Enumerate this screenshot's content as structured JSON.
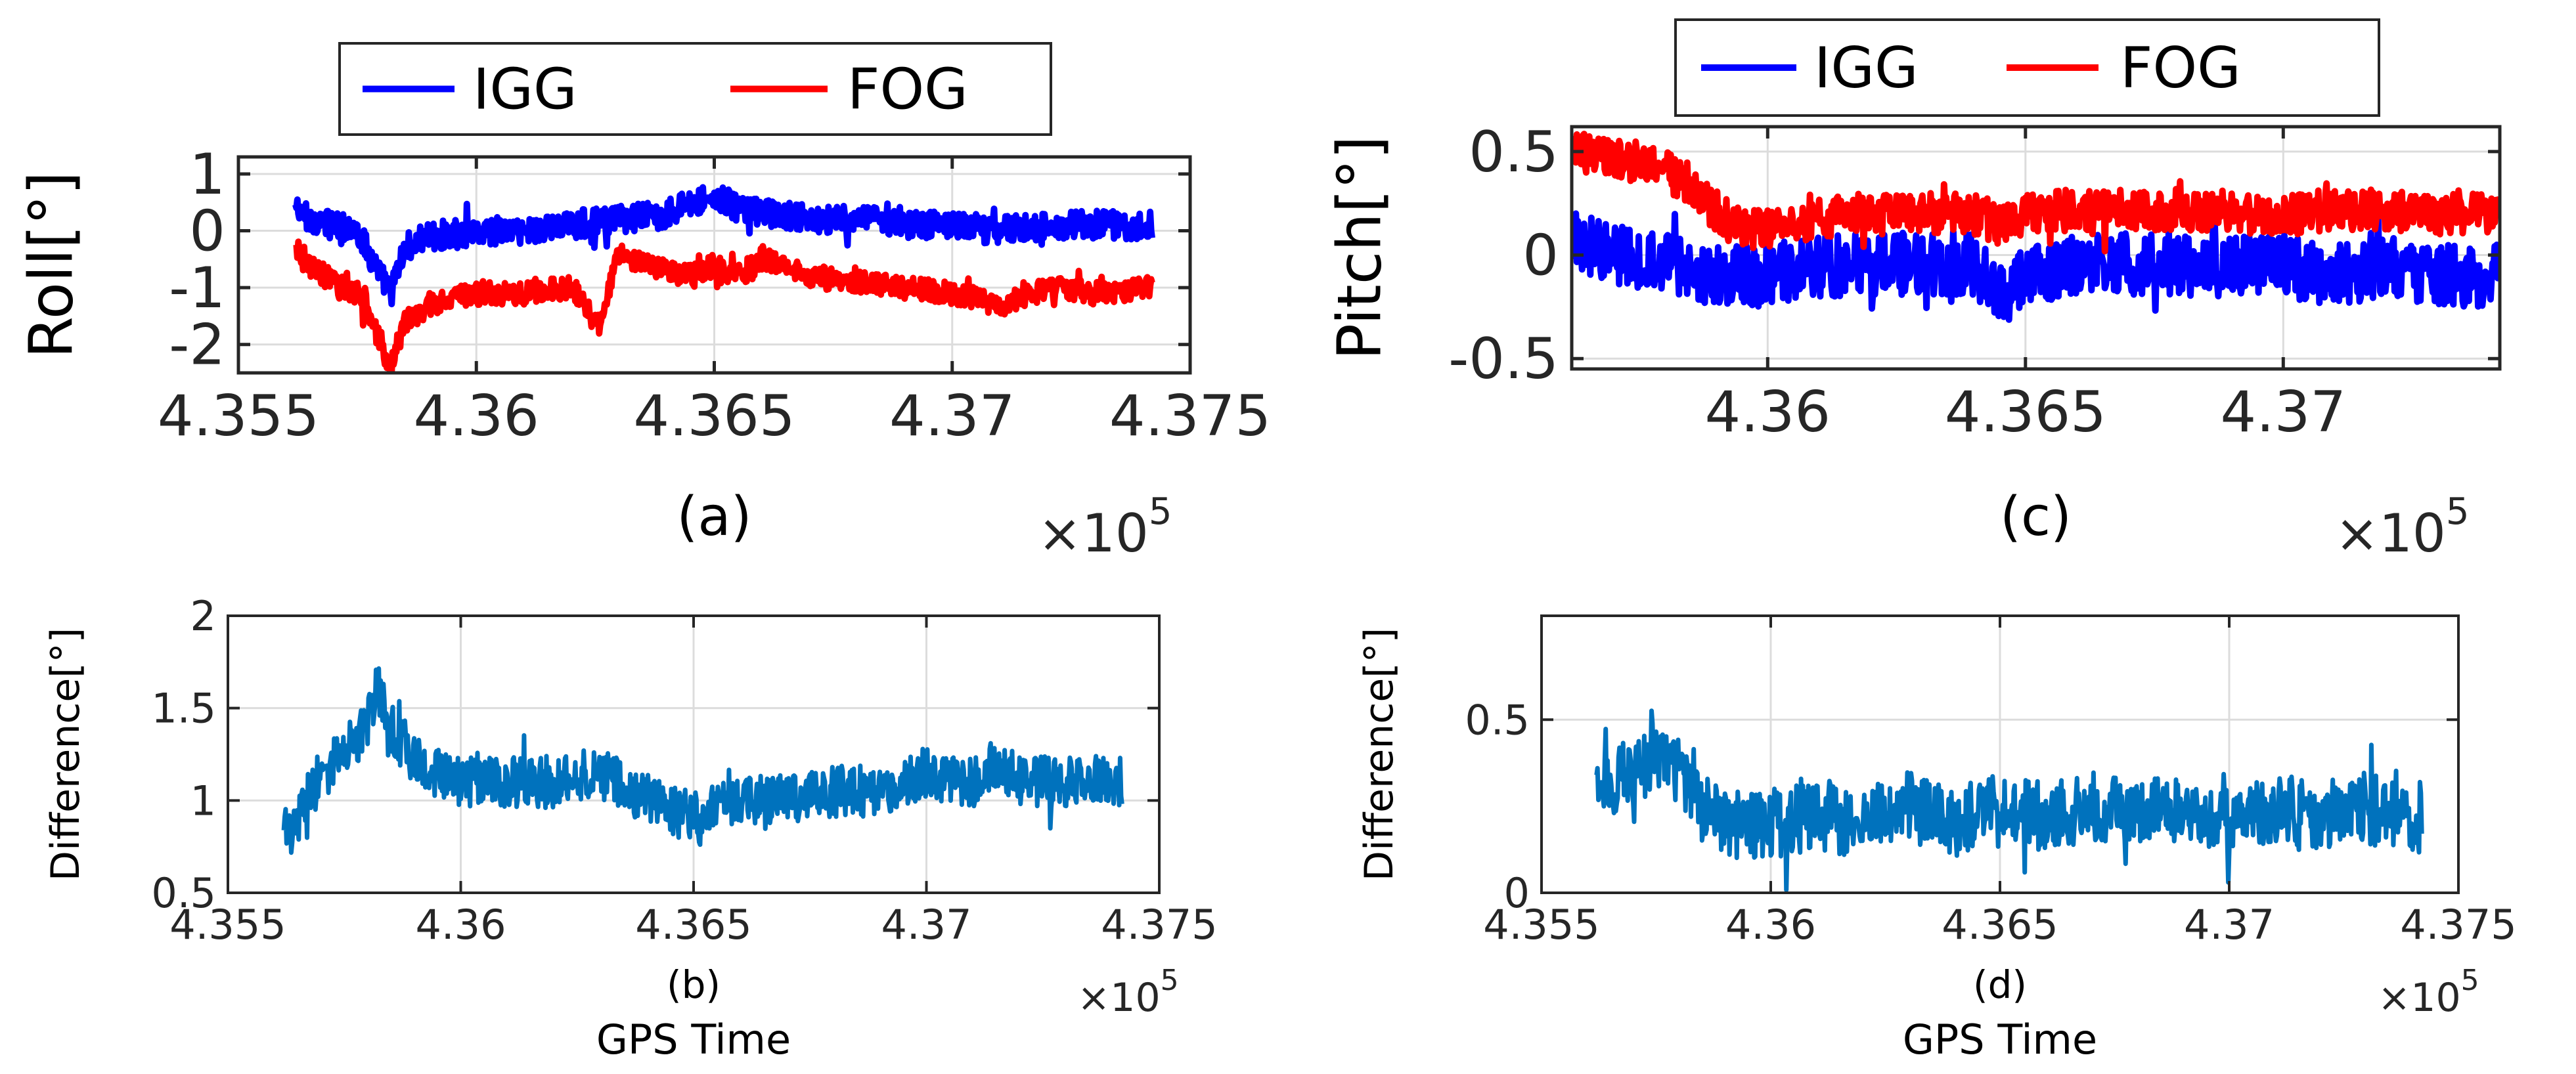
{
  "colors": {
    "igg": "#0000ff",
    "fog": "#ff0000",
    "difference": "#0072bd",
    "grid": "#dcdcdc",
    "axis": "#262626"
  },
  "chart_data": [
    {
      "id": "a",
      "type": "line",
      "sublabel": "(a)",
      "xlabel": "",
      "ylabel": "Roll[°]",
      "xlim": [
        435500,
        437500
      ],
      "ylim": [
        -2.5,
        1.3
      ],
      "xticks": [
        435500,
        436000,
        436500,
        437000,
        437500
      ],
      "xtick_labels": [
        "4.355",
        "4.36",
        "4.365",
        "4.37",
        "4.375"
      ],
      "yticks": [
        1,
        0,
        -1,
        -2
      ],
      "ytick_labels": [
        "1",
        "0",
        "-1",
        "-2"
      ],
      "x_multiplier": "×10",
      "x_exponent": "5",
      "grid": true,
      "legend": {
        "position": "top-center",
        "orientation": "horizontal",
        "entries": [
          "IGG",
          "FOG"
        ]
      },
      "series": [
        {
          "name": "IGG",
          "color_key": "igg",
          "x": [
            435620,
            435650,
            435700,
            435750,
            435800,
            435820,
            435850,
            435900,
            436000,
            436100,
            436200,
            436300,
            436400,
            436450,
            436500,
            436550,
            436600,
            436700,
            436800,
            436900,
            437000,
            437100,
            437200,
            437300,
            437420
          ],
          "y": [
            0.4,
            0.2,
            0.1,
            0.0,
            -0.8,
            -1.1,
            -0.3,
            -0.1,
            0.0,
            0.0,
            0.1,
            0.2,
            0.3,
            0.5,
            0.6,
            0.4,
            0.3,
            0.2,
            0.2,
            0.1,
            0.1,
            0.0,
            0.1,
            0.1,
            0.1
          ],
          "noise": 0.25
        },
        {
          "name": "FOG",
          "color_key": "fog",
          "x": [
            435620,
            435650,
            435700,
            435750,
            435800,
            435820,
            435850,
            435900,
            436000,
            436100,
            436200,
            436260,
            436300,
            436400,
            436450,
            436500,
            436550,
            436600,
            436700,
            436800,
            436900,
            437000,
            437100,
            437200,
            437300,
            437420
          ],
          "y": [
            -0.3,
            -0.6,
            -0.9,
            -1.1,
            -2.0,
            -2.4,
            -1.6,
            -1.3,
            -1.1,
            -1.1,
            -1.0,
            -1.6,
            -0.4,
            -0.7,
            -0.8,
            -0.6,
            -0.8,
            -0.5,
            -0.8,
            -0.9,
            -1.0,
            -1.1,
            -1.3,
            -1.0,
            -1.1,
            -1.0
          ],
          "noise": 0.2
        }
      ]
    },
    {
      "id": "b",
      "type": "line",
      "sublabel": "(b)",
      "xlabel": "GPS Time",
      "ylabel": "Difference[°]",
      "xlim": [
        435500,
        437500
      ],
      "ylim": [
        0.5,
        2
      ],
      "xticks": [
        435500,
        436000,
        436500,
        437000,
        437500
      ],
      "xtick_labels": [
        "4.355",
        "4.36",
        "4.365",
        "4.37",
        "4.375"
      ],
      "yticks": [
        2,
        1.5,
        1,
        0.5
      ],
      "ytick_labels": [
        "2",
        "1.5",
        "1",
        "0.5"
      ],
      "x_multiplier": "×10",
      "x_exponent": "5",
      "grid": true,
      "series": [
        {
          "name": "Difference",
          "color_key": "difference",
          "x": [
            435620,
            435650,
            435700,
            435750,
            435800,
            435820,
            435850,
            435900,
            436000,
            436100,
            436200,
            436300,
            436400,
            436500,
            436600,
            436700,
            436800,
            436900,
            437000,
            437100,
            437150,
            437200,
            437300,
            437420
          ],
          "y": [
            0.8,
            0.9,
            1.15,
            1.25,
            1.4,
            1.65,
            1.4,
            1.2,
            1.1,
            1.1,
            1.1,
            1.15,
            1.0,
            0.9,
            1.0,
            1.0,
            1.05,
            1.05,
            1.15,
            1.1,
            1.2,
            1.1,
            1.1,
            1.1
          ],
          "noise": 0.14
        }
      ]
    },
    {
      "id": "c",
      "type": "line",
      "sublabel": "(c)",
      "xlabel": "",
      "ylabel": "Pitch[°]",
      "xlim": [
        435620,
        437420
      ],
      "ylim": [
        -0.55,
        0.62
      ],
      "xticks": [
        436000,
        436500,
        437000
      ],
      "xtick_labels": [
        "4.36",
        "4.365",
        "4.37"
      ],
      "yticks": [
        0.5,
        0,
        -0.5
      ],
      "ytick_labels": [
        "0.5",
        "0",
        "-0.5"
      ],
      "x_multiplier": "×10",
      "x_exponent": "5",
      "grid": true,
      "legend": {
        "position": "top-center",
        "orientation": "horizontal",
        "entries": [
          "IGG",
          "FOG"
        ]
      },
      "series": [
        {
          "name": "IGG",
          "color_key": "igg",
          "x": [
            435620,
            435700,
            435800,
            435900,
            436000,
            436100,
            436200,
            436300,
            436400,
            436450,
            436500,
            436550,
            436600,
            436700,
            436800,
            436900,
            437000,
            437100,
            437200,
            437300,
            437420
          ],
          "y": [
            0.1,
            0.0,
            -0.05,
            -0.1,
            -0.1,
            -0.05,
            -0.05,
            -0.05,
            -0.05,
            -0.2,
            -0.1,
            -0.1,
            -0.05,
            -0.05,
            -0.05,
            -0.05,
            -0.05,
            -0.1,
            -0.05,
            -0.1,
            -0.1
          ],
          "noise": 0.15
        },
        {
          "name": "FOG",
          "color_key": "fog",
          "x": [
            435620,
            435700,
            435800,
            435880,
            435950,
            436000,
            436100,
            436200,
            436300,
            436400,
            436450,
            436500,
            436600,
            436700,
            436800,
            436900,
            437000,
            437100,
            437200,
            437300,
            437420
          ],
          "y": [
            0.5,
            0.48,
            0.42,
            0.25,
            0.12,
            0.14,
            0.18,
            0.2,
            0.2,
            0.2,
            0.15,
            0.2,
            0.22,
            0.22,
            0.22,
            0.2,
            0.2,
            0.22,
            0.22,
            0.2,
            0.2
          ],
          "noise": 0.1
        }
      ]
    },
    {
      "id": "d",
      "type": "line",
      "sublabel": "(d)",
      "xlabel": "GPS Time",
      "ylabel": "Difference[°]",
      "xlim": [
        435500,
        437500
      ],
      "ylim": [
        0,
        0.8
      ],
      "xticks": [
        435500,
        436000,
        436500,
        437000,
        437500
      ],
      "xtick_labels": [
        "4.355",
        "4.36",
        "4.365",
        "4.37",
        "4.375"
      ],
      "yticks": [
        0.5,
        0
      ],
      "ytick_labels": [
        "0.5",
        "0"
      ],
      "x_multiplier": "×10",
      "x_exponent": "5",
      "grid": true,
      "series": [
        {
          "name": "Difference",
          "color_key": "difference",
          "x": [
            435620,
            435700,
            435750,
            435800,
            435850,
            435900,
            436000,
            436100,
            436200,
            436300,
            436400,
            436500,
            436600,
            436700,
            436800,
            436900,
            437000,
            437100,
            437200,
            437300,
            437420
          ],
          "y": [
            0.3,
            0.35,
            0.4,
            0.35,
            0.25,
            0.2,
            0.2,
            0.22,
            0.2,
            0.25,
            0.2,
            0.25,
            0.22,
            0.25,
            0.22,
            0.25,
            0.2,
            0.25,
            0.22,
            0.25,
            0.2
          ],
          "noise": 0.1
        }
      ]
    }
  ]
}
